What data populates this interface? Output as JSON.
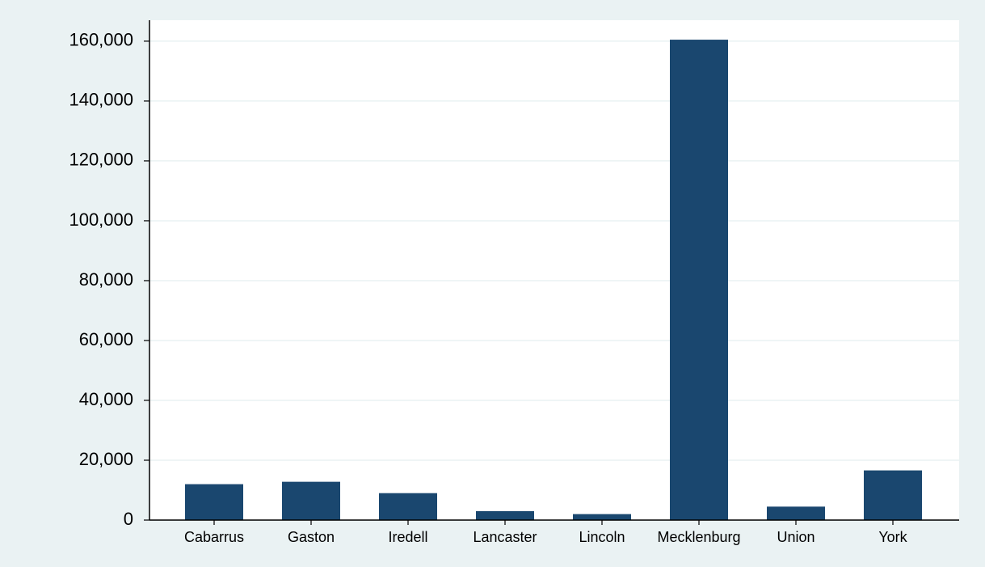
{
  "chart_data": {
    "type": "bar",
    "categories": [
      "Cabarrus",
      "Gaston",
      "Iredell",
      "Lancaster",
      "Lincoln",
      "Mecklenburg",
      "Union",
      "York"
    ],
    "values": [
      12000,
      12800,
      9000,
      3000,
      2000,
      160500,
      4500,
      16600
    ],
    "color": "#1a476f",
    "ylim": [
      0,
      167000
    ],
    "yticks": [
      0,
      {
        "value": 20000,
        "label": "20,000"
      },
      {
        "value": 40000,
        "label": "40,000"
      },
      {
        "value": 60000,
        "label": "60,000"
      },
      {
        "value": 80000,
        "label": "80,000"
      },
      {
        "value": 100000,
        "label": "100,000"
      },
      {
        "value": 120000,
        "label": "120,000"
      },
      {
        "value": 140000,
        "label": "140,000"
      },
      {
        "value": 160000,
        "label": "160,000"
      }
    ],
    "grid": true
  }
}
